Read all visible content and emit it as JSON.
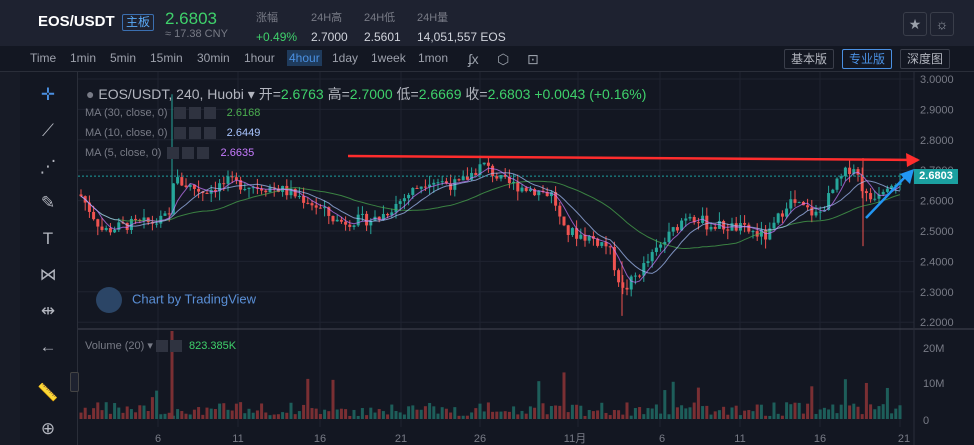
{
  "header": {
    "pair": "EOS/USDT",
    "badge": "主板",
    "last_price": "2.6803",
    "cny": "≈ 17.38 CNY",
    "stats": [
      {
        "label": "涨幅",
        "value": "+0.49%",
        "green": true
      },
      {
        "label": "24H高",
        "value": "2.7000",
        "green": false
      },
      {
        "label": "24H低",
        "value": "2.5601",
        "green": false
      },
      {
        "label": "24H量",
        "value": "14,051,557 EOS",
        "green": false
      }
    ],
    "buttons": [
      "star-icon",
      "sun-icon"
    ]
  },
  "toolbar": {
    "timeframes": [
      "Time",
      "1min",
      "5min",
      "15min",
      "30min",
      "1hour",
      "4hour",
      "1day",
      "1week",
      "1mon"
    ],
    "active_timeframe": "4hour",
    "icons": [
      "studies-icon",
      "settings-icon",
      "fullscreen-icon"
    ],
    "views": [
      "基本版",
      "专业版",
      "深度图"
    ],
    "active_view": "专业版"
  },
  "left_tools": [
    "crosshair-icon",
    "trendline-icon",
    "fib-icon",
    "brush-icon",
    "text-icon",
    "pattern-icon",
    "measure-icon",
    "back-arrow-icon",
    "ruler-icon",
    "zoom-icon"
  ],
  "chart": {
    "legend_symbol": "EOS/USDT, 240, Huobi",
    "open_label": "开",
    "open": "2.6763",
    "high_label": "高",
    "high": "2.7000",
    "low_label": "低",
    "low": "2.6669",
    "close_label": "收",
    "close": "2.6803",
    "change": "+0.0043 (+0.16%)",
    "ma": [
      {
        "label": "MA (30, close, 0)",
        "value": "2.6168",
        "color": "#4caf50"
      },
      {
        "label": "MA (10, close, 0)",
        "value": "2.6449",
        "color": "#a9c4ff"
      },
      {
        "label": "MA (5, close, 0)",
        "value": "2.6635",
        "color": "#c77bff"
      }
    ],
    "watermark": "Chart by TradingView",
    "volume_label": "Volume (20)",
    "volume_value": "823.385K",
    "current_price_tag": "2.6803",
    "price_axis": [
      "3.0000",
      "2.9000",
      "2.8000",
      "2.7000",
      "2.6000",
      "2.5000",
      "2.4000",
      "2.3000",
      "2.2000"
    ],
    "volume_axis": [
      "20M",
      "10M",
      "0"
    ],
    "time_axis": [
      "6",
      "11",
      "16",
      "21",
      "26",
      "11月",
      "6",
      "11",
      "16",
      "21"
    ],
    "colors": {
      "up": "#26a69a",
      "down": "#ef5350",
      "annotation_red": "#ff2d2d",
      "annotation_blue": "#2196f3"
    }
  }
}
